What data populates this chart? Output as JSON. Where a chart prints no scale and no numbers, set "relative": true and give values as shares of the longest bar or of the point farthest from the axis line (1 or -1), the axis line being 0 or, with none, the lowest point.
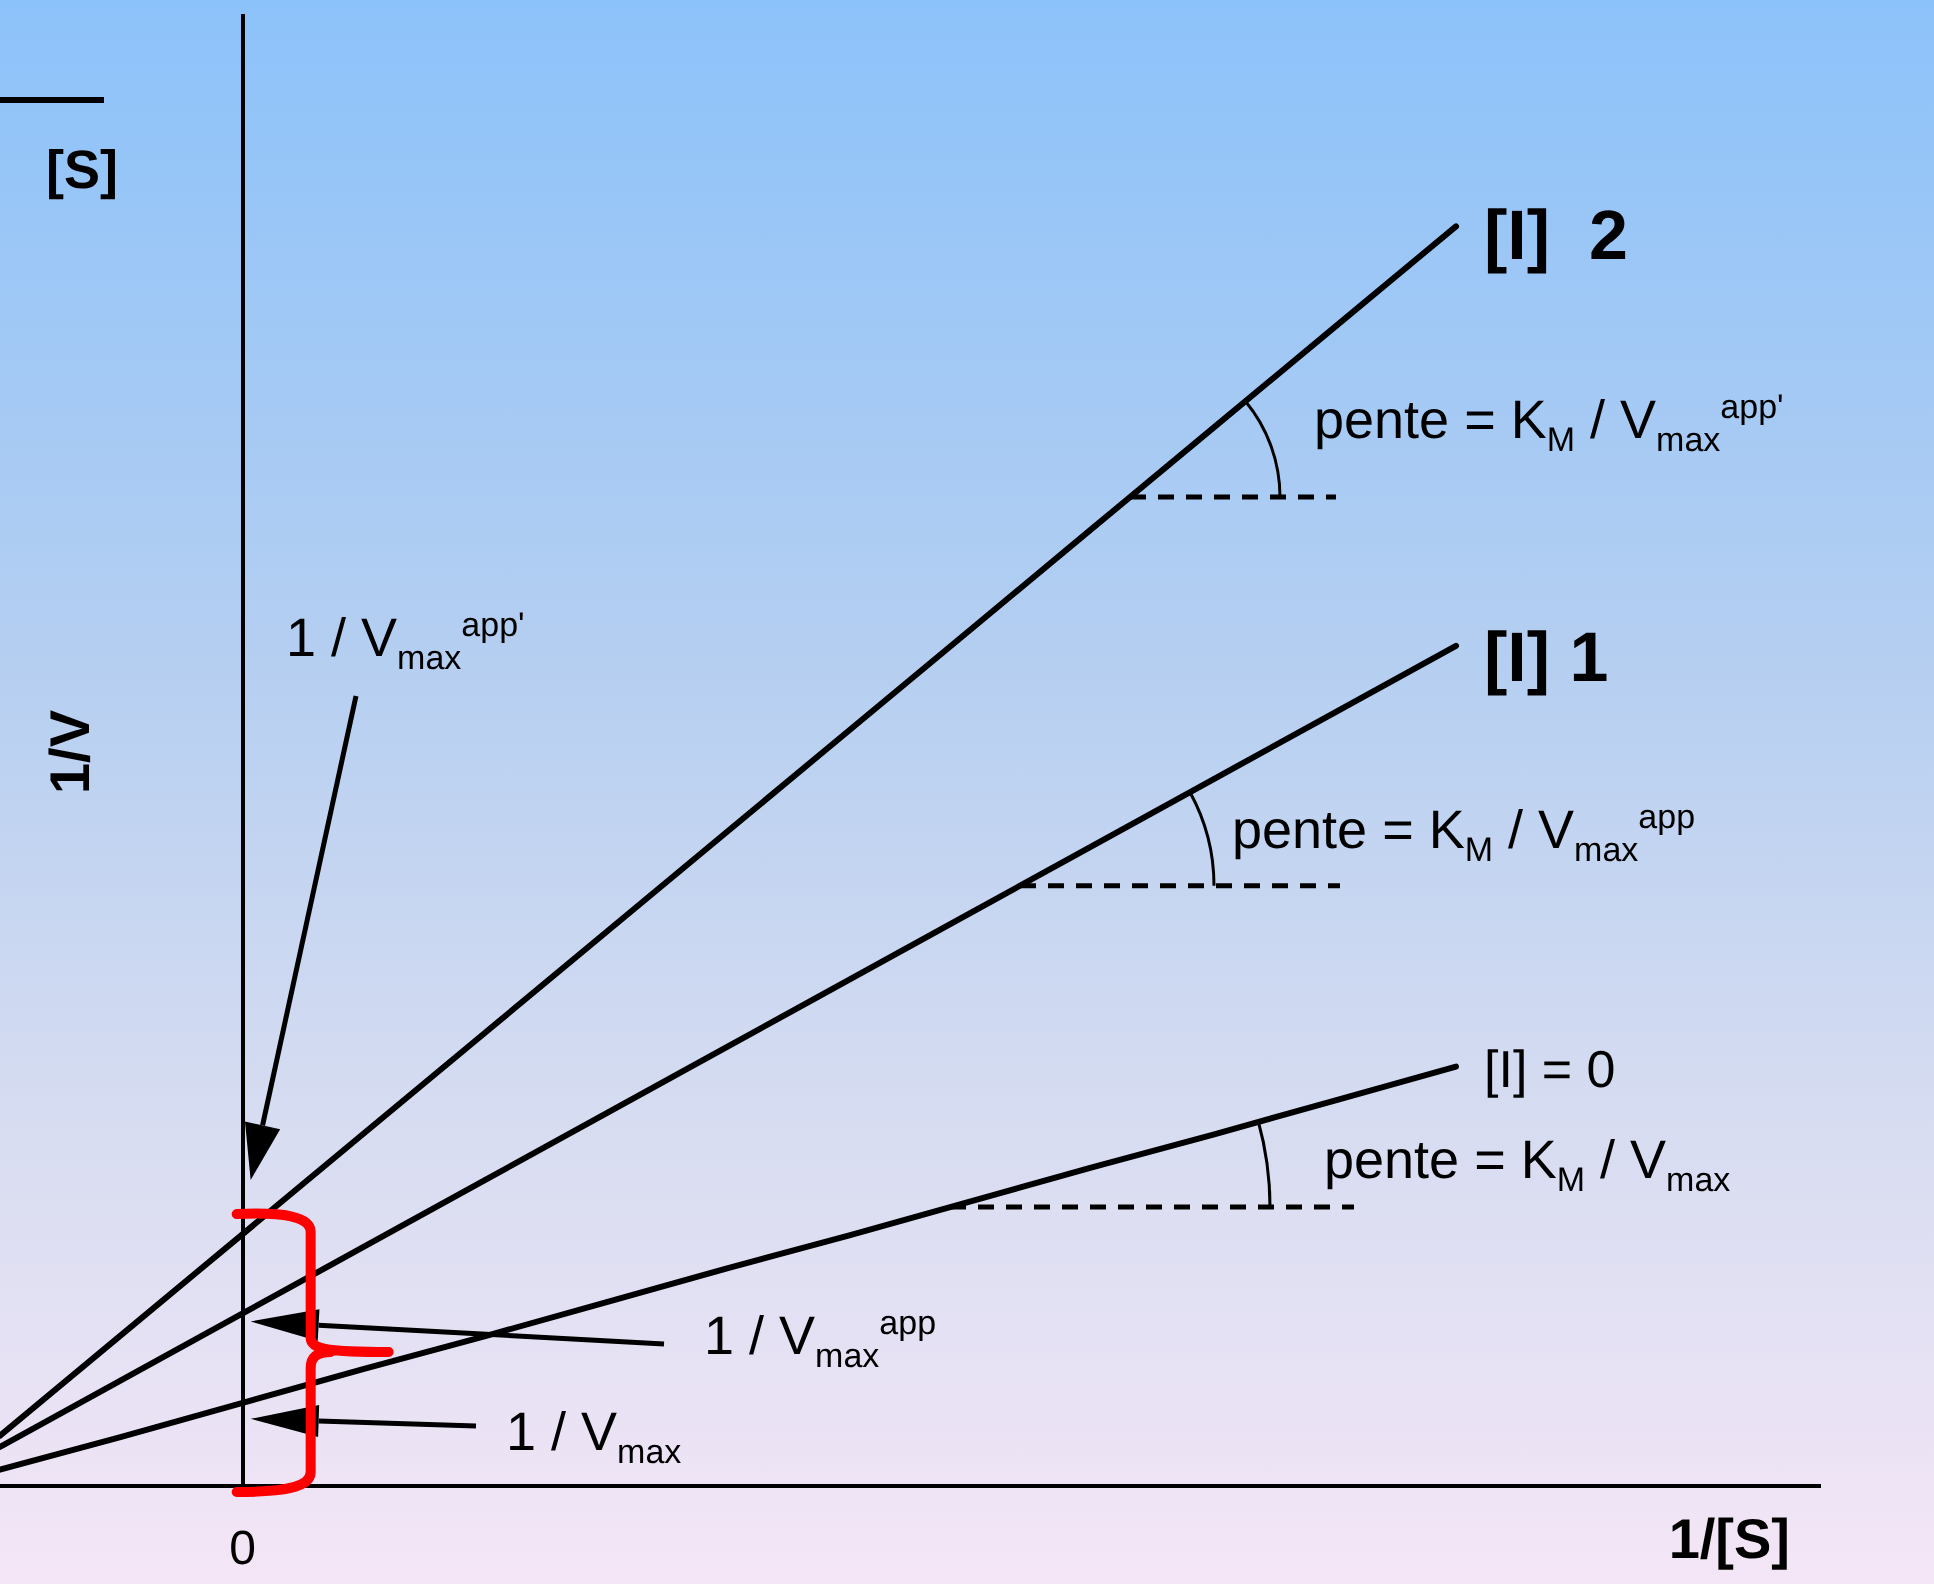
{
  "chart_data": {
    "type": "line",
    "relative": true,
    "categories": [
      null,
      null,
      null,
      null,
      null,
      null,
      null,
      null,
      null,
      null,
      null,
      null,
      null,
      null,
      null,
      null
    ],
    "series": [
      {
        "name": "[I] = 0",
        "color": "#000000",
        "values": [
          0.013,
          0.039,
          0.066,
          0.093,
          0.119,
          0.146,
          0.173,
          0.199,
          0.226,
          0.253,
          0.279,
          0.306,
          0.333,
          null,
          null,
          null
        ]
      },
      {
        "name": "[I] 1",
        "color": "#000000",
        "values": [
          0.031,
          0.084,
          0.137,
          0.19,
          0.243,
          0.296,
          0.349,
          0.402,
          0.455,
          0.508,
          0.561,
          0.614,
          0.667,
          null,
          null,
          null
        ]
      },
      {
        "name": "[I]  2",
        "color": "#000000",
        "values": [
          0.04,
          0.12,
          0.2,
          0.28,
          0.36,
          0.44,
          0.52,
          0.6,
          0.68,
          0.76,
          0.84,
          0.92,
          1,
          null,
          null,
          null
        ]
      }
    ],
    "xlabel": "1/[S]",
    "ylabel": "1/V",
    "marker": "none",
    "line_style": "solid",
    "annotations": [
      "[S]",
      "pente = K$_{M}$ / V$_{max}$$^{app'}$",
      "1 / V$_{max}$$^{app'}$",
      "pente = K$_{M}$ / V$_{max}$$^{app}$",
      "pente = K$_{M}$ / V$_{max}$",
      "1 / V$_{max}$$^{app}$",
      "1 / V$_{max}$",
      "0"
    ]
  }
}
